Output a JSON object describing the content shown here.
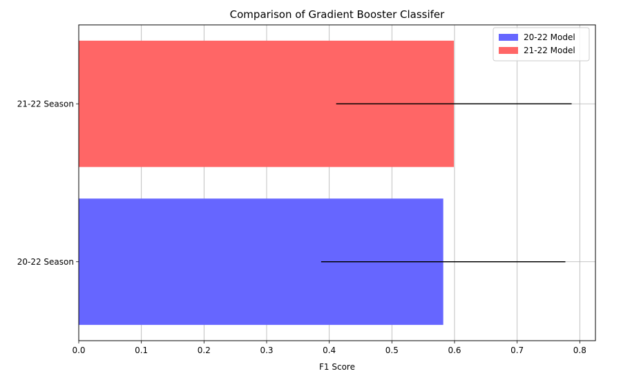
{
  "chart_data": {
    "type": "bar",
    "orientation": "horizontal",
    "title": "Comparison of Gradient Booster Classifer",
    "xlabel": "F1 Score",
    "ylabel": "",
    "xlim": [
      0.0,
      0.825
    ],
    "xticks": [
      "0.0",
      "0.1",
      "0.2",
      "0.3",
      "0.4",
      "0.5",
      "0.6",
      "0.7",
      "0.8"
    ],
    "xtick_values": [
      0.0,
      0.1,
      0.2,
      0.3,
      0.4,
      0.5,
      0.6,
      0.7,
      0.8
    ],
    "categories": [
      "20-22 Season",
      "21-22 Season"
    ],
    "grid": true,
    "legend_position": "top-right",
    "series": [
      {
        "name": "20-22 Model",
        "color": "#6666ff",
        "category": "20-22 Season",
        "value": 0.582,
        "error": 0.195
      },
      {
        "name": "21-22 Model",
        "color": "#ff6666",
        "category": "21-22 Season",
        "value": 0.599,
        "error": 0.188
      }
    ]
  }
}
